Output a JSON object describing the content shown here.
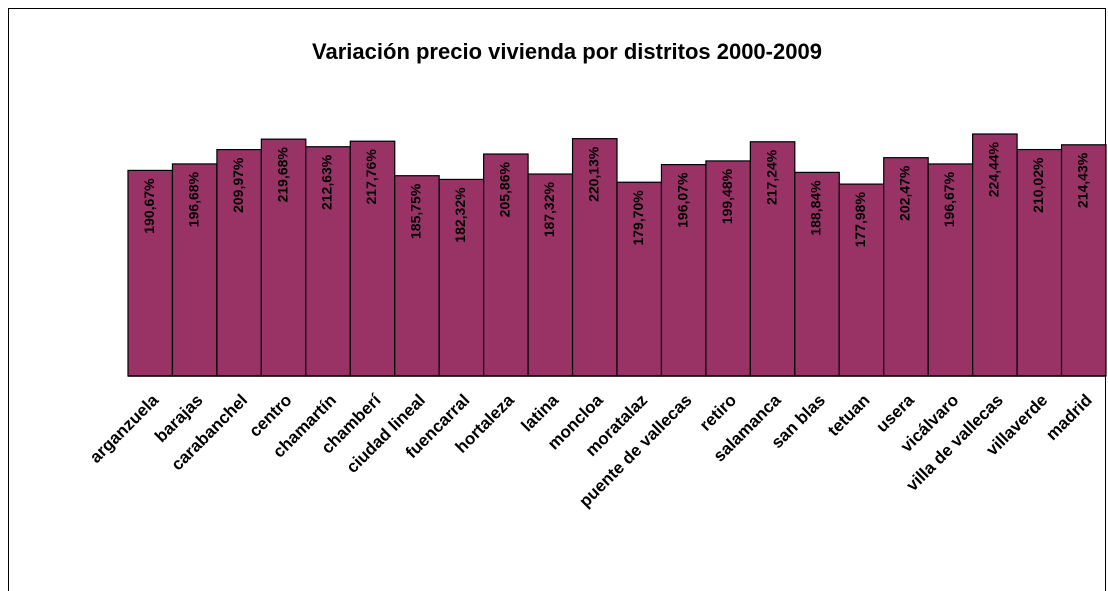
{
  "chart_data": {
    "type": "bar",
    "title": "Variación precio vivienda por distritos 2000-2009",
    "categories": [
      "arganzuela",
      "barajas",
      "carabanchel",
      "centro",
      "chamartín",
      "chamberí",
      "ciudad lineal",
      "fuencarral",
      "hortaleza",
      "latina",
      "moncloa",
      "moratalaz",
      "puente de vallecas",
      "retiro",
      "salamanca",
      "san blas",
      "tetuan",
      "usera",
      "vicálvaro",
      "villa de vallecas",
      "villaverde",
      "madrid"
    ],
    "values": [
      190.67,
      196.68,
      209.97,
      219.68,
      212.63,
      217.76,
      185.75,
      182.32,
      205.86,
      187.32,
      220.13,
      179.7,
      196.07,
      199.48,
      217.24,
      188.84,
      177.98,
      202.47,
      196.67,
      224.44,
      210.02,
      214.43
    ],
    "value_labels": [
      "190,67%",
      "196,68%",
      "209,97%",
      "219,68%",
      "212,63%",
      "217,76%",
      "185,75%",
      "182,32%",
      "205,86%",
      "187,32%",
      "220,13%",
      "179,70%",
      "196,07%",
      "199,48%",
      "217,24%",
      "188,84%",
      "177,98%",
      "202,47%",
      "196,67%",
      "224,44%",
      "210,02%",
      "214,43%"
    ],
    "color": "#993366"
  }
}
